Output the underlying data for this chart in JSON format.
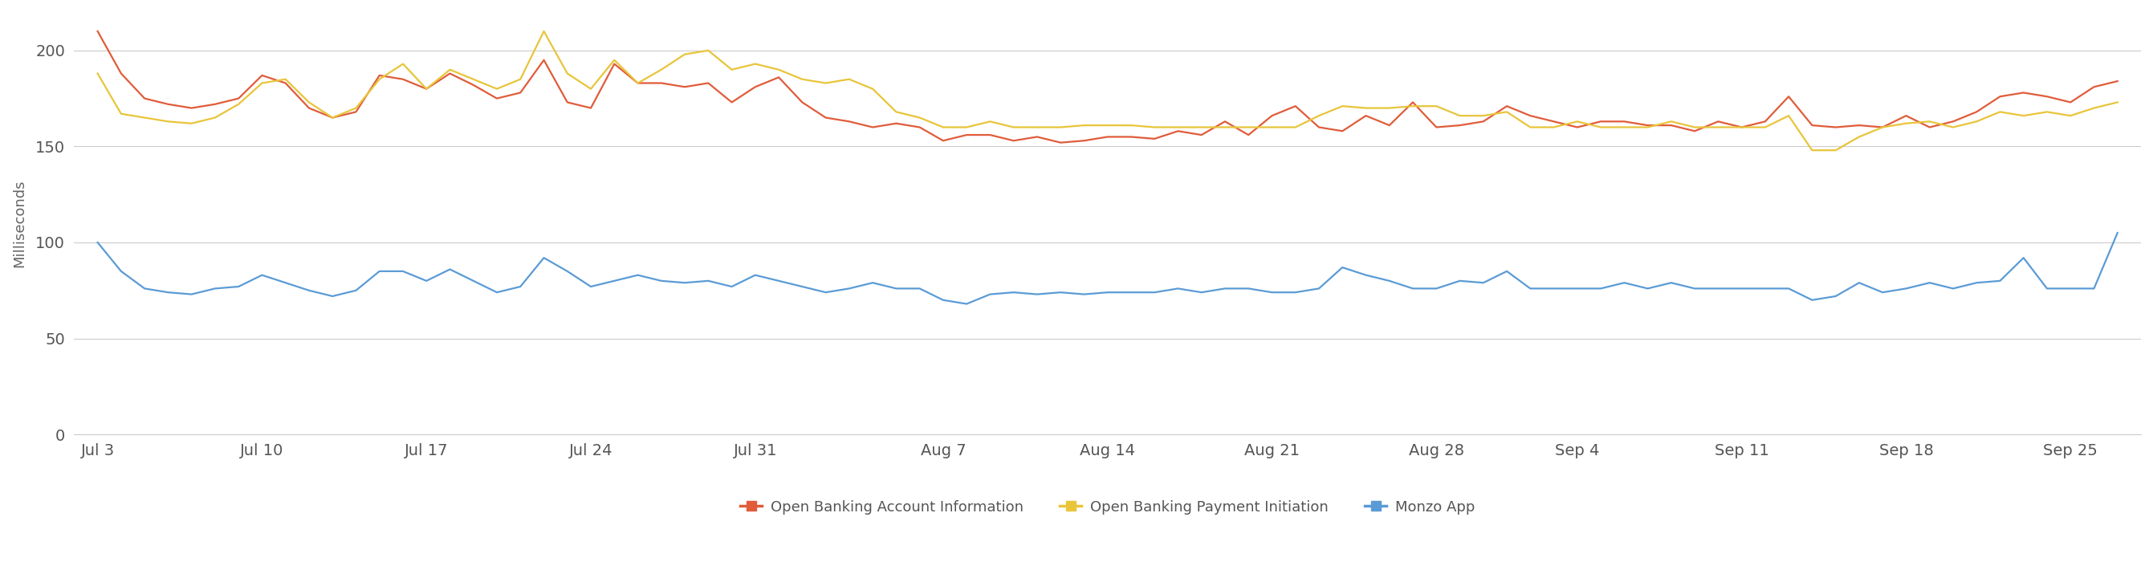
{
  "title": "",
  "ylabel": "Milliseconds",
  "background_color": "#ffffff",
  "grid_color": "#cccccc",
  "series": {
    "Open Banking Account Information": {
      "color": "#e05c3a",
      "data_y": [
        210,
        188,
        175,
        172,
        170,
        172,
        175,
        187,
        183,
        170,
        165,
        168,
        187,
        185,
        180,
        188,
        182,
        175,
        178,
        195,
        173,
        170,
        193,
        183,
        183,
        181,
        183,
        173,
        181,
        186,
        173,
        165,
        163,
        160,
        162,
        160,
        153,
        156,
        156,
        153,
        155,
        152,
        153,
        155,
        155,
        154,
        158,
        156,
        163,
        156,
        166,
        171,
        160,
        158,
        166,
        161,
        173,
        160,
        161,
        163,
        171,
        166,
        163,
        160,
        163,
        163,
        161,
        161,
        158,
        163,
        160,
        163,
        176,
        161,
        160,
        161,
        160,
        166,
        160,
        163,
        168,
        176,
        178,
        176,
        173,
        181,
        184
      ]
    },
    "Open Banking Payment Initiation": {
      "color": "#e8c53a",
      "data_y": [
        188,
        167,
        165,
        163,
        162,
        165,
        172,
        183,
        185,
        173,
        165,
        170,
        185,
        193,
        180,
        190,
        185,
        180,
        185,
        210,
        188,
        180,
        195,
        183,
        190,
        198,
        200,
        190,
        193,
        190,
        185,
        183,
        185,
        180,
        168,
        165,
        160,
        160,
        163,
        160,
        160,
        160,
        161,
        161,
        161,
        160,
        160,
        160,
        160,
        160,
        160,
        160,
        166,
        171,
        170,
        170,
        171,
        171,
        166,
        166,
        168,
        160,
        160,
        163,
        160,
        160,
        160,
        163,
        160,
        160,
        160,
        160,
        166,
        148,
        148,
        155,
        160,
        162,
        163,
        160,
        163,
        168,
        166,
        168,
        166,
        170,
        173
      ]
    },
    "Monzo App": {
      "color": "#5b9bd5",
      "data_y": [
        100,
        85,
        76,
        74,
        73,
        76,
        77,
        83,
        79,
        75,
        72,
        75,
        85,
        85,
        80,
        86,
        80,
        74,
        77,
        92,
        85,
        77,
        80,
        83,
        80,
        79,
        80,
        77,
        83,
        80,
        77,
        74,
        76,
        79,
        76,
        76,
        70,
        68,
        73,
        74,
        73,
        74,
        73,
        74,
        74,
        74,
        76,
        74,
        76,
        76,
        74,
        74,
        76,
        87,
        83,
        80,
        76,
        76,
        80,
        79,
        85,
        76,
        76,
        76,
        76,
        79,
        76,
        79,
        76,
        76,
        76,
        76,
        76,
        70,
        72,
        79,
        74,
        76,
        79,
        76,
        79,
        80,
        92,
        76,
        76,
        76,
        105
      ]
    }
  },
  "x_tick_positions": [
    0,
    7,
    14,
    21,
    28,
    36,
    43,
    50,
    57,
    63,
    70,
    77,
    84
  ],
  "x_tick_labels": [
    "Jul 3",
    "Jul 10",
    "Jul 17",
    "Jul 24",
    "Jul 31",
    "Aug 7",
    "Aug 14",
    "Aug 21",
    "Aug 28",
    "Sep 4",
    "Sep 11",
    "Sep 18",
    "Sep 25"
  ],
  "yticks": [
    0,
    50,
    100,
    150,
    200
  ],
  "ylim": [
    0,
    220
  ],
  "xlim": [
    -1,
    87
  ],
  "legend_labels": [
    "Open Banking Account Information",
    "Open Banking Payment Initiation",
    "Monzo App"
  ],
  "legend_colors": [
    "#e05c3a",
    "#e8c53a",
    "#5b9bd5"
  ],
  "linewidth": 1.6
}
